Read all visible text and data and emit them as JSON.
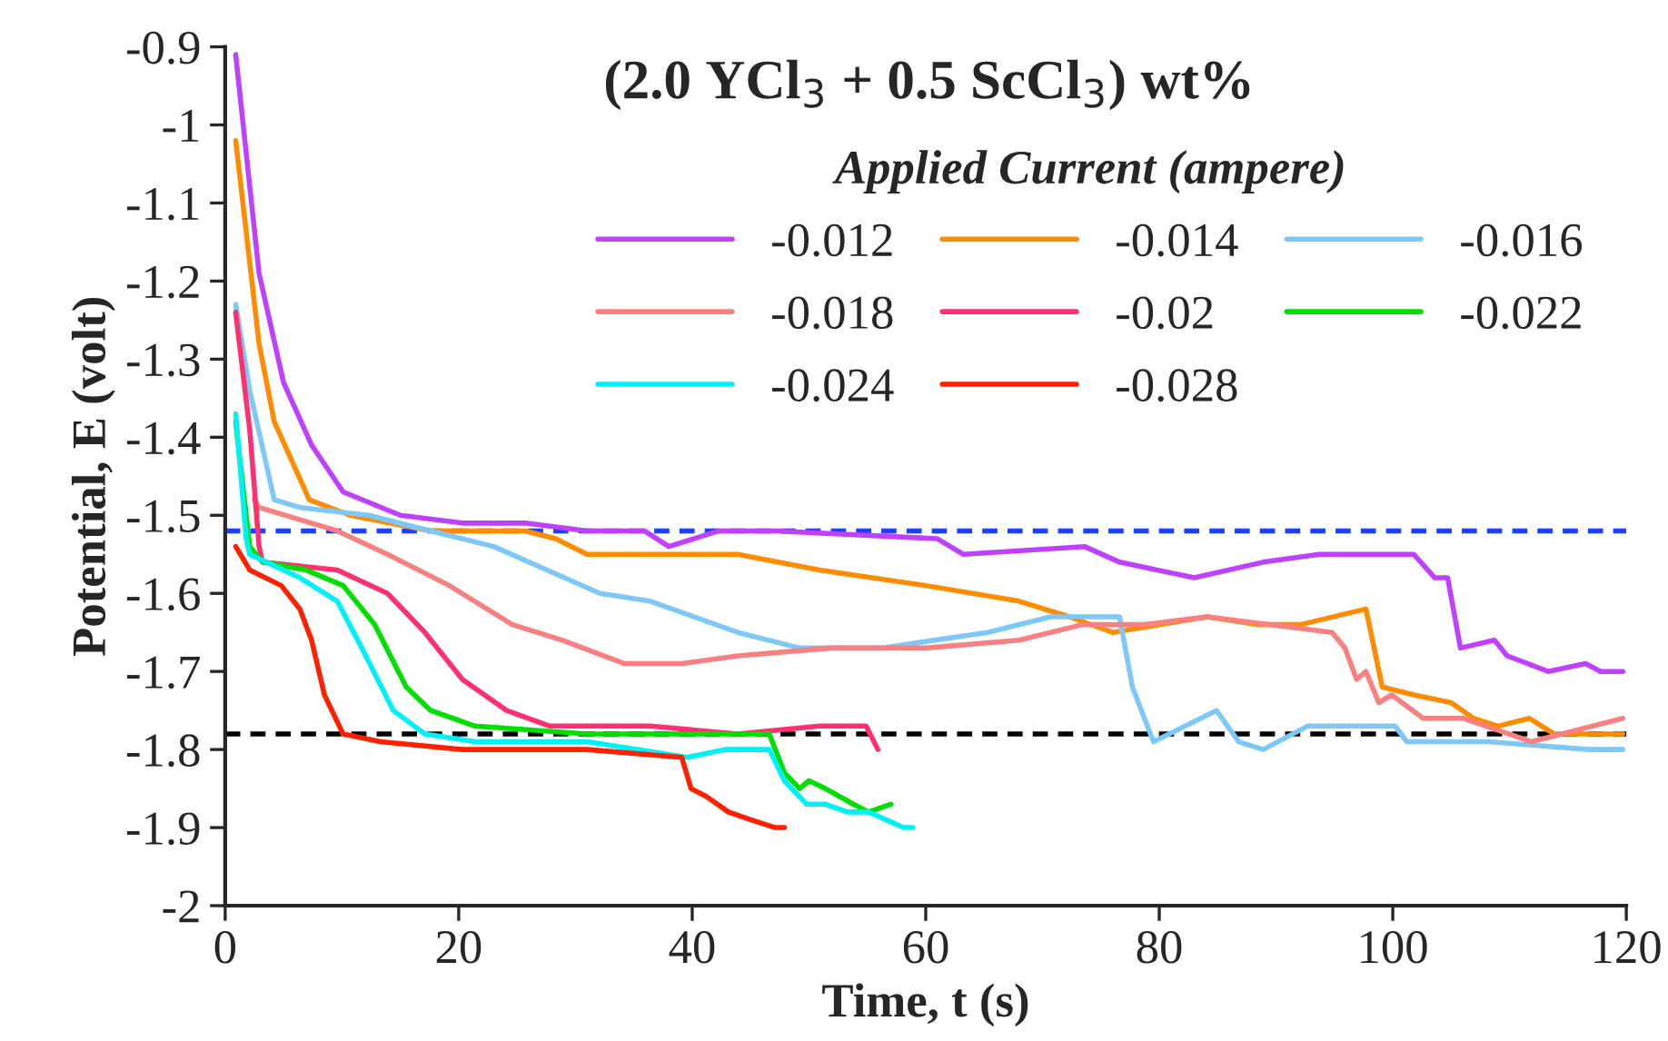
{
  "chart_data": {
    "type": "line",
    "title": "(2.0 YCl$_{3}$ + 0.5 ScCl$_{3}$) wt%",
    "xlabel": "Time, t (s)",
    "ylabel": "Potential, E (volt)",
    "legend_title": "Applied Current (ampere)",
    "xlim": [
      0,
      120
    ],
    "xticks": [
      0,
      20,
      40,
      60,
      80,
      100,
      120
    ],
    "ylim": [
      -2,
      -0.9
    ],
    "yticks": [
      -2,
      -1.9,
      -1.8,
      -1.7,
      -1.6,
      -1.5,
      -1.4,
      -1.3,
      -1.2,
      -1.1,
      -1,
      -0.9
    ],
    "grid": false,
    "legend": "top right",
    "marker": "none",
    "line_style": "solid",
    "ref_lines": [
      {
        "axis": "y",
        "value": -1.52,
        "color": "#1f3fff",
        "line_style": "dashed"
      },
      {
        "axis": "y",
        "value": -1.78,
        "color": "#000000",
        "line_style": "dashed"
      }
    ],
    "series": [
      {
        "name": "-0.012",
        "color": "#c040ff",
        "x": [
          0.9,
          2.9,
          5,
          7.4,
          10.1,
          15,
          20.3,
          25.7,
          31,
          35.9,
          38,
          42.3,
          47.1,
          61,
          63.2,
          73.6,
          76.6,
          83,
          88.9,
          93.7,
          101.8,
          103.6,
          104.7,
          105.8,
          108.7,
          109.8,
          113.3,
          116.5,
          117.8,
          119.7
        ],
        "values": [
          -0.91,
          -1.19,
          -1.33,
          -1.41,
          -1.47,
          -1.5,
          -1.51,
          -1.51,
          -1.52,
          -1.52,
          -1.54,
          -1.52,
          -1.52,
          -1.53,
          -1.55,
          -1.54,
          -1.56,
          -1.58,
          -1.56,
          -1.55,
          -1.55,
          -1.58,
          -1.58,
          -1.67,
          -1.66,
          -1.68,
          -1.7,
          -1.69,
          -1.7,
          -1.7
        ]
      },
      {
        "name": "-0.014",
        "color": "#ff8c00",
        "x": [
          0.9,
          2.9,
          4.2,
          7.2,
          10.7,
          17.6,
          25.7,
          28.3,
          31,
          36.4,
          43.9,
          50.9,
          60,
          68,
          72.3,
          76,
          84.1,
          88.4,
          92.1,
          97.7,
          99.1,
          101.8,
          105,
          106.9,
          109,
          111.7,
          113.8,
          119.7
        ],
        "values": [
          -1.02,
          -1.28,
          -1.38,
          -1.48,
          -1.5,
          -1.52,
          -1.52,
          -1.53,
          -1.55,
          -1.55,
          -1.55,
          -1.57,
          -1.59,
          -1.61,
          -1.63,
          -1.65,
          -1.63,
          -1.64,
          -1.64,
          -1.62,
          -1.72,
          -1.73,
          -1.74,
          -1.76,
          -1.77,
          -1.76,
          -1.78,
          -1.78
        ]
      },
      {
        "name": "-0.016",
        "color": "#7ec8f8",
        "x": [
          0.9,
          2.1,
          4.2,
          6.4,
          12.3,
          17.6,
          23,
          32.1,
          36.4,
          43.9,
          49.2,
          56.2,
          65.3,
          70.7,
          76.6,
          77.7,
          79.5,
          84.9,
          86.8,
          88.9,
          92.7,
          100.2,
          101.2,
          108.2,
          116.8,
          119.7
        ],
        "values": [
          -1.23,
          -1.34,
          -1.48,
          -1.49,
          -1.5,
          -1.52,
          -1.54,
          -1.6,
          -1.61,
          -1.65,
          -1.67,
          -1.67,
          -1.65,
          -1.63,
          -1.63,
          -1.72,
          -1.79,
          -1.75,
          -1.79,
          -1.8,
          -1.77,
          -1.77,
          -1.79,
          -1.79,
          -1.8,
          -1.8
        ]
      },
      {
        "name": "-0.018",
        "color": "#f88080",
        "x": [
          2.5,
          2.9,
          9.6,
          13.9,
          19.2,
          24.6,
          28.9,
          34.2,
          39.1,
          43.9,
          51.9,
          60,
          68,
          73.4,
          78.7,
          84.1,
          89.4,
          94.8,
          95.9,
          96.9,
          97.7,
          98.8,
          99.9,
          102.6,
          106,
          111.9,
          119.7
        ],
        "values": [
          -1.48,
          -1.49,
          -1.52,
          -1.55,
          -1.59,
          -1.64,
          -1.66,
          -1.69,
          -1.69,
          -1.68,
          -1.67,
          -1.67,
          -1.66,
          -1.64,
          -1.64,
          -1.63,
          -1.64,
          -1.65,
          -1.67,
          -1.71,
          -1.7,
          -1.74,
          -1.73,
          -1.76,
          -1.76,
          -1.79,
          -1.76
        ]
      },
      {
        "name": "-0.02",
        "color": "#ff3070",
        "x": [
          0.9,
          2.1,
          2.9,
          3.2,
          9.6,
          13.9,
          17.1,
          20.3,
          24.1,
          27.8,
          36.4,
          43.9,
          50.9,
          54.9,
          55.9
        ],
        "values": [
          -1.24,
          -1.39,
          -1.54,
          -1.56,
          -1.57,
          -1.6,
          -1.65,
          -1.71,
          -1.75,
          -1.77,
          -1.77,
          -1.78,
          -1.77,
          -1.77,
          -1.8
        ]
      },
      {
        "name": "-0.022",
        "color": "#00e000",
        "x": [
          0.9,
          2.1,
          3.2,
          6.9,
          10.1,
          12.8,
          15.5,
          17.6,
          21.4,
          31,
          46.6,
          47.9,
          49.2,
          50,
          51.4,
          53.8,
          55.1,
          57
        ],
        "values": [
          -1.38,
          -1.54,
          -1.56,
          -1.57,
          -1.59,
          -1.64,
          -1.72,
          -1.75,
          -1.77,
          -1.78,
          -1.78,
          -1.83,
          -1.85,
          -1.84,
          -1.85,
          -1.87,
          -1.88,
          -1.87
        ]
      },
      {
        "name": "-0.024",
        "color": "#00f0f8",
        "x": [
          0.9,
          1.8,
          2.1,
          6.4,
          9.6,
          11.7,
          14.4,
          17.1,
          21.4,
          31,
          39.6,
          42.8,
          46.6,
          47.9,
          49.8,
          51.4,
          53.3,
          55.1,
          58.1,
          58.9
        ],
        "values": [
          -1.37,
          -1.53,
          -1.55,
          -1.58,
          -1.61,
          -1.67,
          -1.75,
          -1.78,
          -1.79,
          -1.79,
          -1.81,
          -1.8,
          -1.8,
          -1.84,
          -1.87,
          -1.87,
          -1.88,
          -1.88,
          -1.9,
          -1.9
        ]
      },
      {
        "name": "-0.028",
        "color": "#ff2000",
        "x": [
          0.9,
          2.1,
          4.8,
          6.4,
          7.4,
          8.5,
          10.1,
          13.3,
          20.3,
          31,
          39.1,
          39.9,
          41.2,
          43.1,
          45,
          47.1,
          47.9
        ],
        "values": [
          -1.54,
          -1.57,
          -1.59,
          -1.62,
          -1.66,
          -1.73,
          -1.78,
          -1.79,
          -1.8,
          -1.8,
          -1.81,
          -1.85,
          -1.86,
          -1.88,
          -1.89,
          -1.9,
          -1.9
        ]
      }
    ]
  }
}
